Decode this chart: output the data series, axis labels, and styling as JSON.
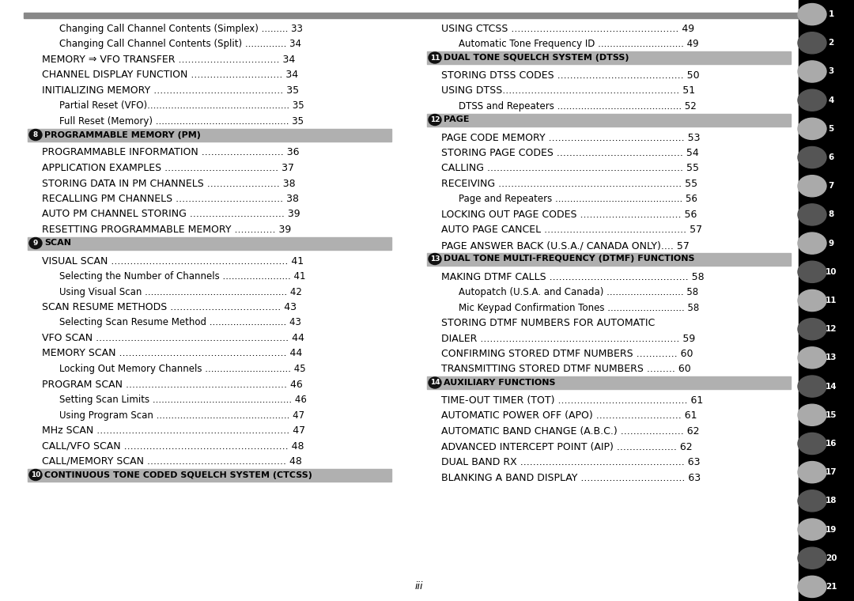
{
  "bg_color": "#ffffff",
  "top_bar_color": "#888888",
  "header_bg_color": "#b0b0b0",
  "right_bar_bg": "#000000",
  "section_info": {
    "8": {
      "text": "PROGRAMMABLE MEMORY (PM)"
    },
    "9": {
      "text": "SCAN"
    },
    "10": {
      "text": "CONTINUOUS TONE CODED SQUELCH SYSTEM (CTCSS)"
    },
    "11": {
      "text": "DUAL TONE SQUELCH SYSTEM (DTSS)"
    },
    "12": {
      "text": "PAGE"
    },
    "13": {
      "text": "DUAL TONE MULTI-FREQUENCY (DTMF) FUNCTIONS"
    },
    "14": {
      "text": "AUXILIARY FUNCTIONS"
    }
  },
  "left_entries": [
    {
      "text": "Changing Call Channel Contents (Simplex) ......... 33",
      "indent": 2
    },
    {
      "text": "Changing Call Channel Contents (Split) .............. 34",
      "indent": 2
    },
    {
      "text": "MEMORY ⇒ VFO TRANSFER ................................ 34",
      "indent": 1
    },
    {
      "text": "CHANNEL DISPLAY FUNCTION ............................. 34",
      "indent": 1
    },
    {
      "text": "INITIALIZING MEMORY ......................................... 35",
      "indent": 1
    },
    {
      "text": "Partial Reset (VFO)................................................ 35",
      "indent": 2
    },
    {
      "text": "Full Reset (Memory) ............................................. 35",
      "indent": 2
    },
    {
      "section": "8"
    },
    {
      "text": "PROGRAMMABLE INFORMATION .......................... 36",
      "indent": 1
    },
    {
      "text": "APPLICATION EXAMPLES .................................... 37",
      "indent": 1
    },
    {
      "text": "STORING DATA IN PM CHANNELS ....................... 38",
      "indent": 1
    },
    {
      "text": "RECALLING PM CHANNELS .................................. 38",
      "indent": 1
    },
    {
      "text": "AUTO PM CHANNEL STORING .............................. 39",
      "indent": 1
    },
    {
      "text": "RESETTING PROGRAMMABLE MEMORY ............. 39",
      "indent": 1
    },
    {
      "section": "9"
    },
    {
      "text": "VISUAL SCAN ........................................................ 41",
      "indent": 1
    },
    {
      "text": "Selecting the Number of Channels ....................... 41",
      "indent": 2
    },
    {
      "text": "Using Visual Scan ................................................ 42",
      "indent": 2
    },
    {
      "text": "SCAN RESUME METHODS ................................... 43",
      "indent": 1
    },
    {
      "text": "Selecting Scan Resume Method .......................... 43",
      "indent": 2
    },
    {
      "text": "VFO SCAN ............................................................. 44",
      "indent": 1
    },
    {
      "text": "MEMORY SCAN ..................................................... 44",
      "indent": 1
    },
    {
      "text": "Locking Out Memory Channels ............................. 45",
      "indent": 2
    },
    {
      "text": "PROGRAM SCAN ................................................... 46",
      "indent": 1
    },
    {
      "text": "Setting Scan Limits ............................................... 46",
      "indent": 2
    },
    {
      "text": "Using Program Scan ............................................. 47",
      "indent": 2
    },
    {
      "text": "MHz SCAN ............................................................. 47",
      "indent": 1
    },
    {
      "text": "CALL/VFO SCAN .................................................... 48",
      "indent": 1
    },
    {
      "text": "CALL/MEMORY SCAN ............................................ 48",
      "indent": 1
    },
    {
      "section": "10"
    }
  ],
  "right_entries": [
    {
      "text": "USING CTCSS ..................................................... 49",
      "indent": 1
    },
    {
      "text": "Automatic Tone Frequency ID ............................. 49",
      "indent": 2
    },
    {
      "section": "11"
    },
    {
      "text": "STORING DTSS CODES ........................................ 50",
      "indent": 1
    },
    {
      "text": "USING DTSS........................................................ 51",
      "indent": 1
    },
    {
      "text": "DTSS and Repeaters .......................................... 52",
      "indent": 2
    },
    {
      "section": "12"
    },
    {
      "text": "PAGE CODE MEMORY ........................................... 53",
      "indent": 1
    },
    {
      "text": "STORING PAGE CODES ........................................ 54",
      "indent": 1
    },
    {
      "text": "CALLING .............................................................. 55",
      "indent": 1
    },
    {
      "text": "RECEIVING .......................................................... 55",
      "indent": 1
    },
    {
      "text": "Page and Repeaters ........................................... 56",
      "indent": 2
    },
    {
      "text": "LOCKING OUT PAGE CODES ................................ 56",
      "indent": 1
    },
    {
      "text": "AUTO PAGE CANCEL ............................................. 57",
      "indent": 1
    },
    {
      "text": "PAGE ANSWER BACK (U.S.A./ CANADA ONLY).... 57",
      "indent": 1
    },
    {
      "section": "13"
    },
    {
      "text": "MAKING DTMF CALLS ............................................ 58",
      "indent": 1
    },
    {
      "text": "Autopatch (U.S.A. and Canada) .......................... 58",
      "indent": 2
    },
    {
      "text": "Mic Keypad Confirmation Tones .......................... 58",
      "indent": 2
    },
    {
      "text": "STORING DTMF NUMBERS FOR AUTOMATIC",
      "indent": 1
    },
    {
      "text": "DIALER ............................................................... 59",
      "indent": 1
    },
    {
      "text": "CONFIRMING STORED DTMF NUMBERS ............. 60",
      "indent": 1
    },
    {
      "text": "TRANSMITTING STORED DTMF NUMBERS ......... 60",
      "indent": 1
    },
    {
      "section": "14"
    },
    {
      "text": "TIME-OUT TIMER (TOT) ......................................... 61",
      "indent": 1
    },
    {
      "text": "AUTOMATIC POWER OFF (APO) ........................... 61",
      "indent": 1
    },
    {
      "text": "AUTOMATIC BAND CHANGE (A.B.C.) .................... 62",
      "indent": 1
    },
    {
      "text": "ADVANCED INTERCEPT POINT (AIP) ................... 62",
      "indent": 1
    },
    {
      "text": "DUAL BAND RX .................................................... 63",
      "indent": 1
    },
    {
      "text": "BLANKING A BAND DISPLAY ................................. 63",
      "indent": 1
    }
  ],
  "tab_numbers": [
    1,
    2,
    3,
    4,
    5,
    6,
    7,
    8,
    9,
    10,
    11,
    12,
    13,
    14,
    15,
    16,
    17,
    18,
    19,
    20,
    21
  ],
  "tab_light_nums": [
    1,
    3,
    5,
    7,
    9,
    11,
    13,
    15,
    17,
    19,
    21
  ],
  "footer_text": "iii"
}
